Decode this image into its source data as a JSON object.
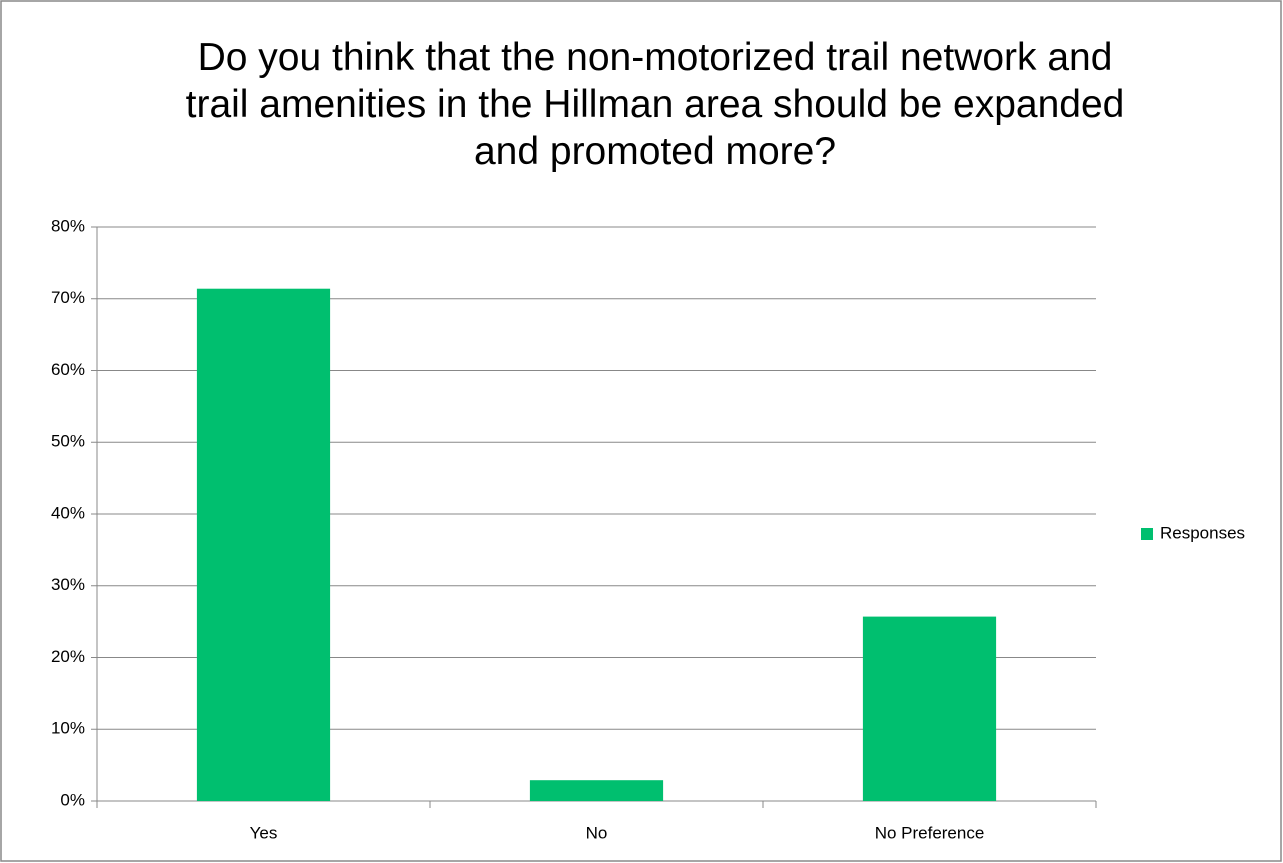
{
  "chart_data": {
    "type": "bar",
    "title": "Do you think that the non-motorized trail network and trail amenities in the Hillman area should be expanded and promoted more?",
    "categories": [
      "Yes",
      "No",
      "No Preference"
    ],
    "series": [
      {
        "name": "Responses",
        "color": "#00bf6f",
        "values": [
          71.4,
          2.9,
          25.7
        ]
      }
    ],
    "ylim": [
      0,
      80
    ],
    "yticks": [
      {
        "value": 0,
        "label": "0%"
      },
      {
        "value": 10,
        "label": "10%"
      },
      {
        "value": 20,
        "label": "20%"
      },
      {
        "value": 30,
        "label": "30%"
      },
      {
        "value": 40,
        "label": "40%"
      },
      {
        "value": 50,
        "label": "50%"
      },
      {
        "value": 60,
        "label": "60%"
      },
      {
        "value": 70,
        "label": "70%"
      },
      {
        "value": 80,
        "label": "80%"
      }
    ],
    "grid": true,
    "legend": "right"
  }
}
